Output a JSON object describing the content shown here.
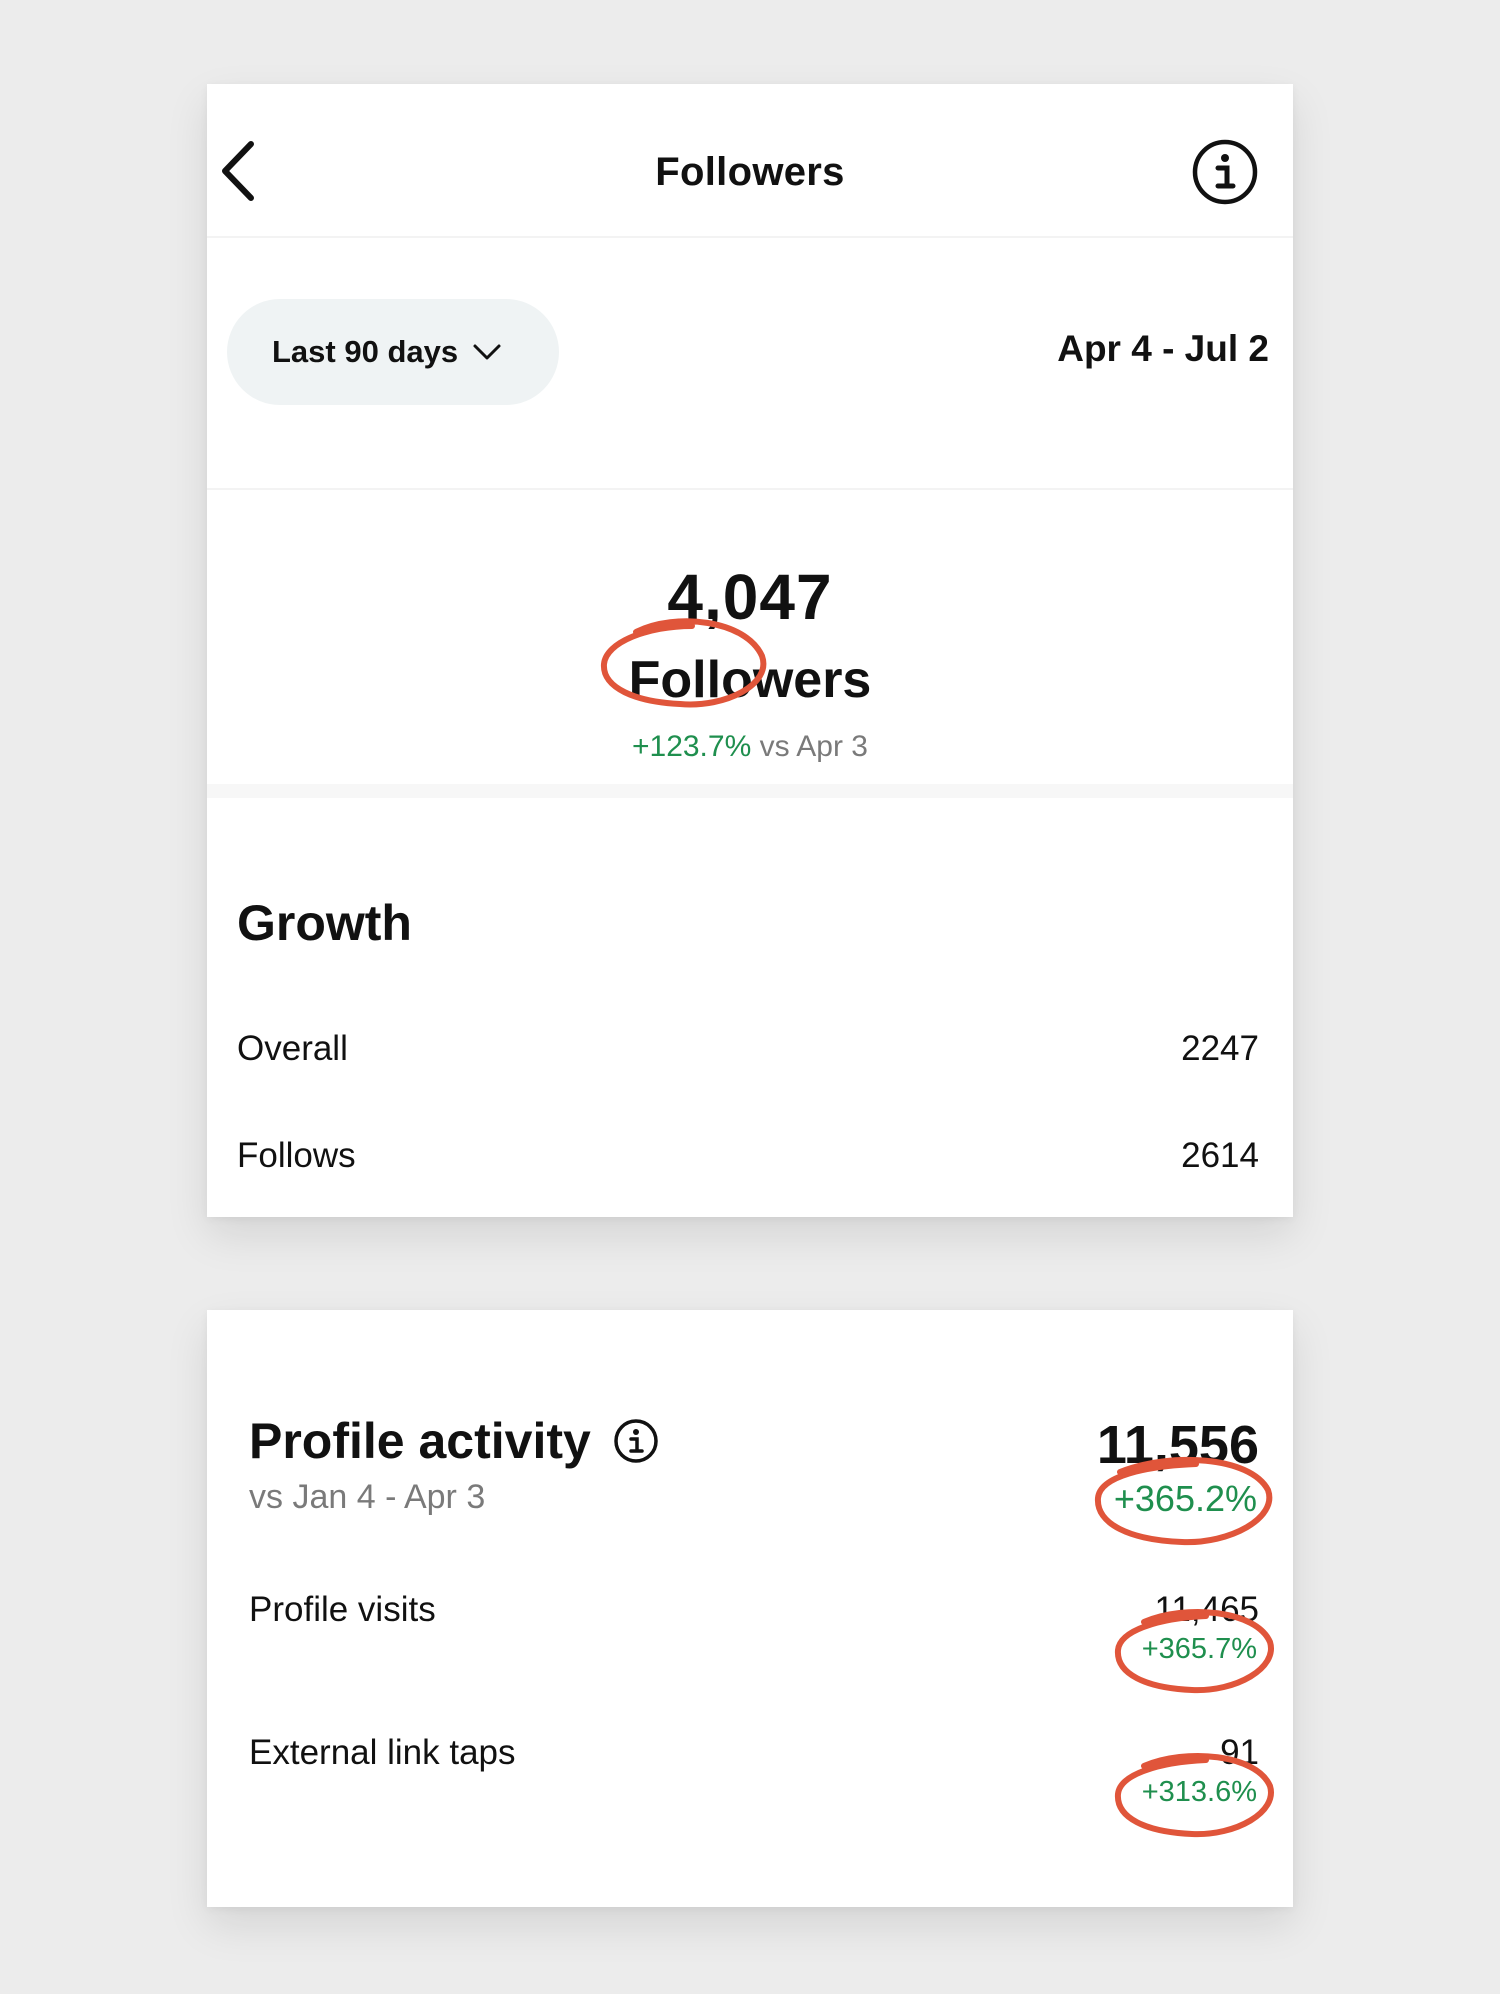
{
  "header": {
    "title": "Followers"
  },
  "filter": {
    "range_label": "Last 90 days",
    "date_range": "Apr 4 - Jul 2"
  },
  "summary": {
    "count": "4,047",
    "label": "Followers",
    "delta": "+123.7%",
    "compare": "vs Apr 3"
  },
  "growth": {
    "title": "Growth",
    "rows": [
      {
        "label": "Overall",
        "value": "2247"
      },
      {
        "label": "Follows",
        "value": "2614"
      }
    ]
  },
  "profile_activity": {
    "title": "Profile activity",
    "subtitle": "vs Jan 4 - Apr 3",
    "total": "11,556",
    "total_delta": "+365.2%",
    "rows": [
      {
        "label": "Profile visits",
        "value": "11,465",
        "delta": "+365.7%"
      },
      {
        "label": "External link taps",
        "value": "91",
        "delta": "+313.6%"
      }
    ]
  },
  "colors": {
    "positive": "#1f8f4e",
    "annotation": "#e0553a",
    "pill_bg": "#eff3f4"
  }
}
